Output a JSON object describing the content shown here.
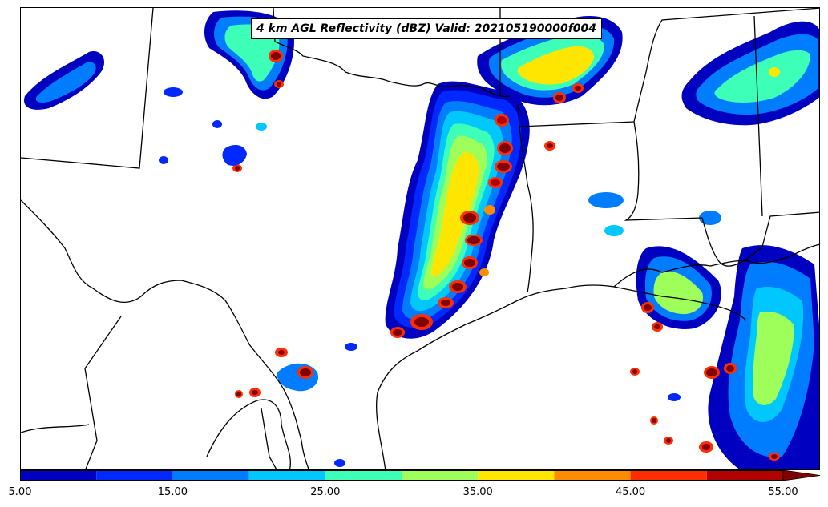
{
  "title": "4 km AGL Reflectivity (dBZ) Valid: 202105190000f004",
  "colorbar": {
    "bins": [
      {
        "from": 5,
        "to": 10,
        "color": "#0000c0"
      },
      {
        "from": 10,
        "to": 15,
        "color": "#0028ff"
      },
      {
        "from": 15,
        "to": 20,
        "color": "#007dff"
      },
      {
        "from": 20,
        "to": 25,
        "color": "#00c8ff"
      },
      {
        "from": 25,
        "to": 30,
        "color": "#3dffb8"
      },
      {
        "from": 30,
        "to": 35,
        "color": "#9eff5a"
      },
      {
        "from": 35,
        "to": 40,
        "color": "#ffe600"
      },
      {
        "from": 40,
        "to": 45,
        "color": "#ff8c00"
      },
      {
        "from": 45,
        "to": 50,
        "color": "#ff2e00"
      },
      {
        "from": 50,
        "to": 55,
        "color": "#b00000"
      }
    ],
    "extend_color": "#800000",
    "tick_labels": [
      "5.00",
      "15.00",
      "25.00",
      "35.00",
      "45.00",
      "55.00"
    ],
    "ticks": [
      5,
      15,
      25,
      35,
      45,
      55
    ]
  }
}
